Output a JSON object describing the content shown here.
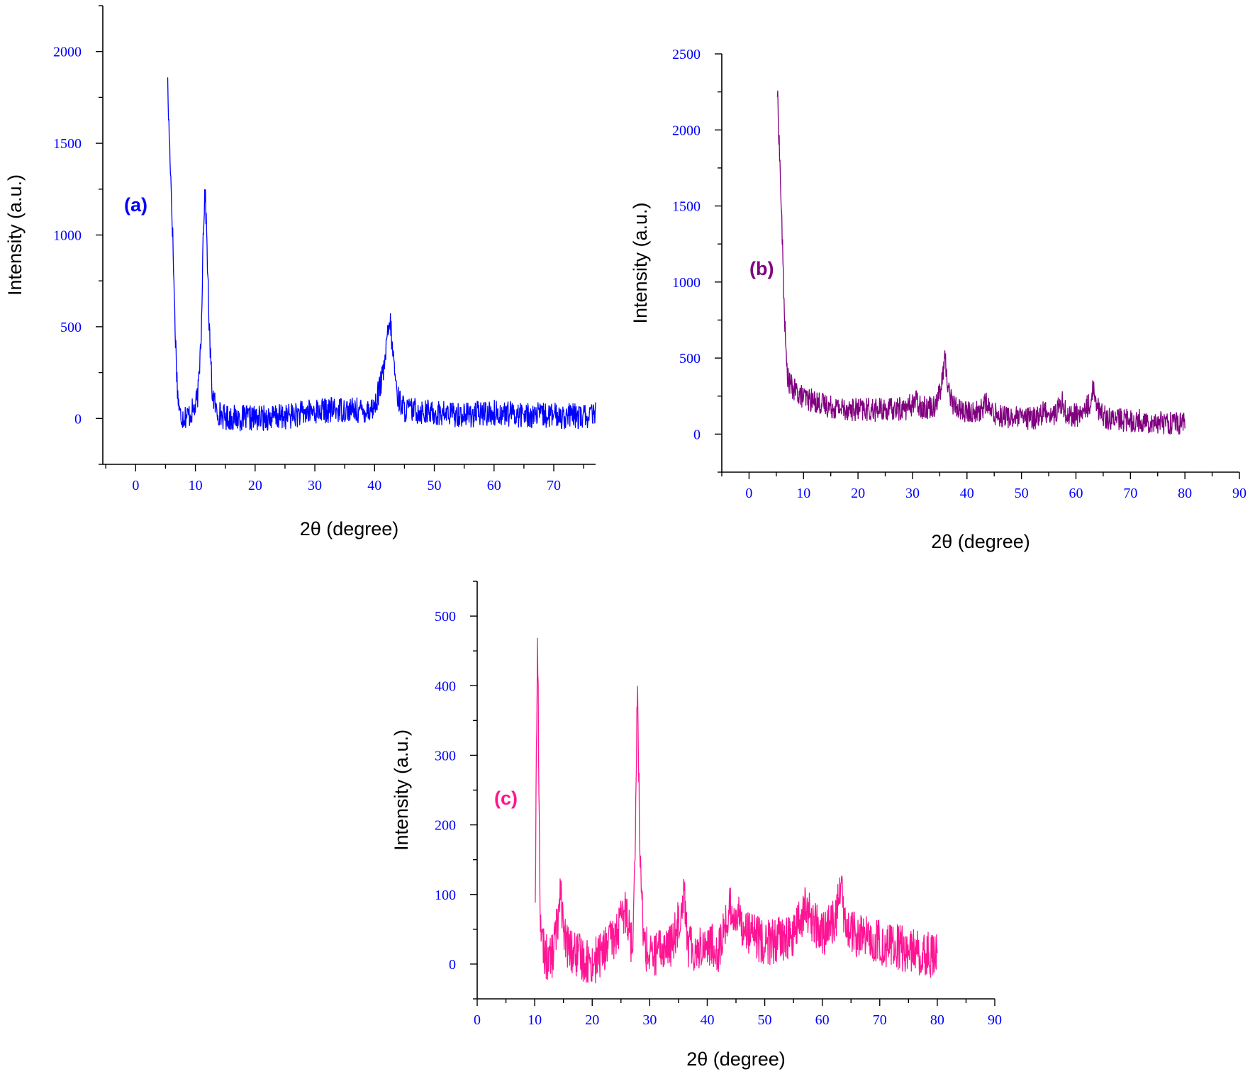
{
  "chart_data": [
    {
      "type": "line",
      "panel_label": "(a)",
      "xlabel": "2θ (degree)",
      "ylabel": "Intensity (a.u.)",
      "xlim": [
        -5.5,
        77
      ],
      "ylim": [
        -250,
        2250
      ],
      "xticks": [
        0,
        10,
        20,
        30,
        40,
        50,
        60,
        70
      ],
      "yticks": [
        0,
        500,
        1000,
        1500,
        2000
      ],
      "color": "#0000FF",
      "tick_label_color": "#0000FF",
      "series": [
        {
          "x": [
            5.3,
            5.5,
            5.8,
            6.2,
            6.6,
            7.0,
            7.4,
            8,
            9,
            10,
            10.5,
            11,
            11.3,
            11.6,
            11.9,
            12.3,
            12.8,
            13.5,
            15,
            20,
            25,
            30,
            35,
            38,
            40,
            41.5,
            42.2,
            42.6,
            43,
            43.8,
            45,
            50,
            55,
            60,
            65,
            70,
            75,
            77
          ],
          "y": [
            1890,
            1650,
            1400,
            1000,
            500,
            150,
            20,
            10,
            20,
            60,
            150,
            500,
            1000,
            1250,
            1000,
            500,
            150,
            40,
            5,
            0,
            10,
            40,
            50,
            40,
            60,
            250,
            450,
            530,
            380,
            120,
            50,
            30,
            20,
            30,
            20,
            15,
            10,
            20
          ]
        }
      ]
    },
    {
      "type": "line",
      "panel_label": "(b)",
      "xlabel": "2θ (degree)",
      "ylabel": "Intensity (a.u.)",
      "xlim": [
        -5,
        90
      ],
      "ylim": [
        -250,
        2500
      ],
      "xticks": [
        0,
        10,
        20,
        30,
        40,
        50,
        60,
        70,
        80,
        90
      ],
      "yticks": [
        0,
        500,
        1000,
        1500,
        2000,
        2500
      ],
      "color": "#800080",
      "tick_label_color": "#0000FF",
      "series": [
        {
          "x": [
            5.2,
            5.6,
            6.0,
            6.4,
            6.8,
            7.2,
            8,
            10,
            15,
            20,
            25,
            29,
            30.6,
            32,
            34,
            35.3,
            35.9,
            36.5,
            37.5,
            40,
            42.5,
            43.4,
            44.5,
            48,
            52,
            54.5,
            56,
            57.4,
            58.5,
            61,
            62.5,
            63.3,
            64.2,
            66,
            70,
            75,
            80
          ],
          "y": [
            2250,
            1850,
            1400,
            900,
            500,
            350,
            300,
            240,
            180,
            160,
            160,
            170,
            220,
            170,
            190,
            300,
            510,
            320,
            190,
            140,
            150,
            210,
            140,
            110,
            100,
            150,
            120,
            210,
            120,
            130,
            200,
            310,
            150,
            100,
            90,
            80,
            70
          ]
        }
      ]
    },
    {
      "type": "line",
      "panel_label": "(c)",
      "xlabel": "2θ (degree)",
      "ylabel": "Intensity (a.u.)",
      "xlim": [
        0,
        90
      ],
      "ylim": [
        -50,
        550
      ],
      "xticks": [
        0,
        10,
        20,
        30,
        40,
        50,
        60,
        70,
        80,
        90
      ],
      "yticks": [
        0,
        100,
        200,
        300,
        400,
        500
      ],
      "color": "#FF1493",
      "tick_label_color": "#0000FF",
      "series": [
        {
          "x": [
            10.1,
            10.3,
            10.5,
            10.7,
            10.9,
            11.2,
            12,
            13,
            14,
            14.5,
            15,
            16,
            18,
            20,
            22,
            24,
            25,
            26,
            27,
            27.5,
            27.9,
            28.3,
            29,
            30,
            32,
            34,
            35.5,
            36,
            36.5,
            38,
            40,
            42,
            44,
            45,
            48,
            50,
            55,
            57,
            60,
            62.5,
            63.2,
            64,
            66,
            70,
            75,
            80
          ],
          "y": [
            100,
            300,
            468,
            300,
            100,
            30,
            10,
            10,
            60,
            125,
            40,
            20,
            10,
            0,
            20,
            40,
            60,
            80,
            20,
            200,
            410,
            150,
            30,
            10,
            20,
            30,
            80,
            115,
            30,
            20,
            30,
            20,
            80,
            70,
            40,
            30,
            40,
            80,
            40,
            70,
            120,
            50,
            40,
            30,
            20,
            10
          ]
        }
      ]
    }
  ]
}
